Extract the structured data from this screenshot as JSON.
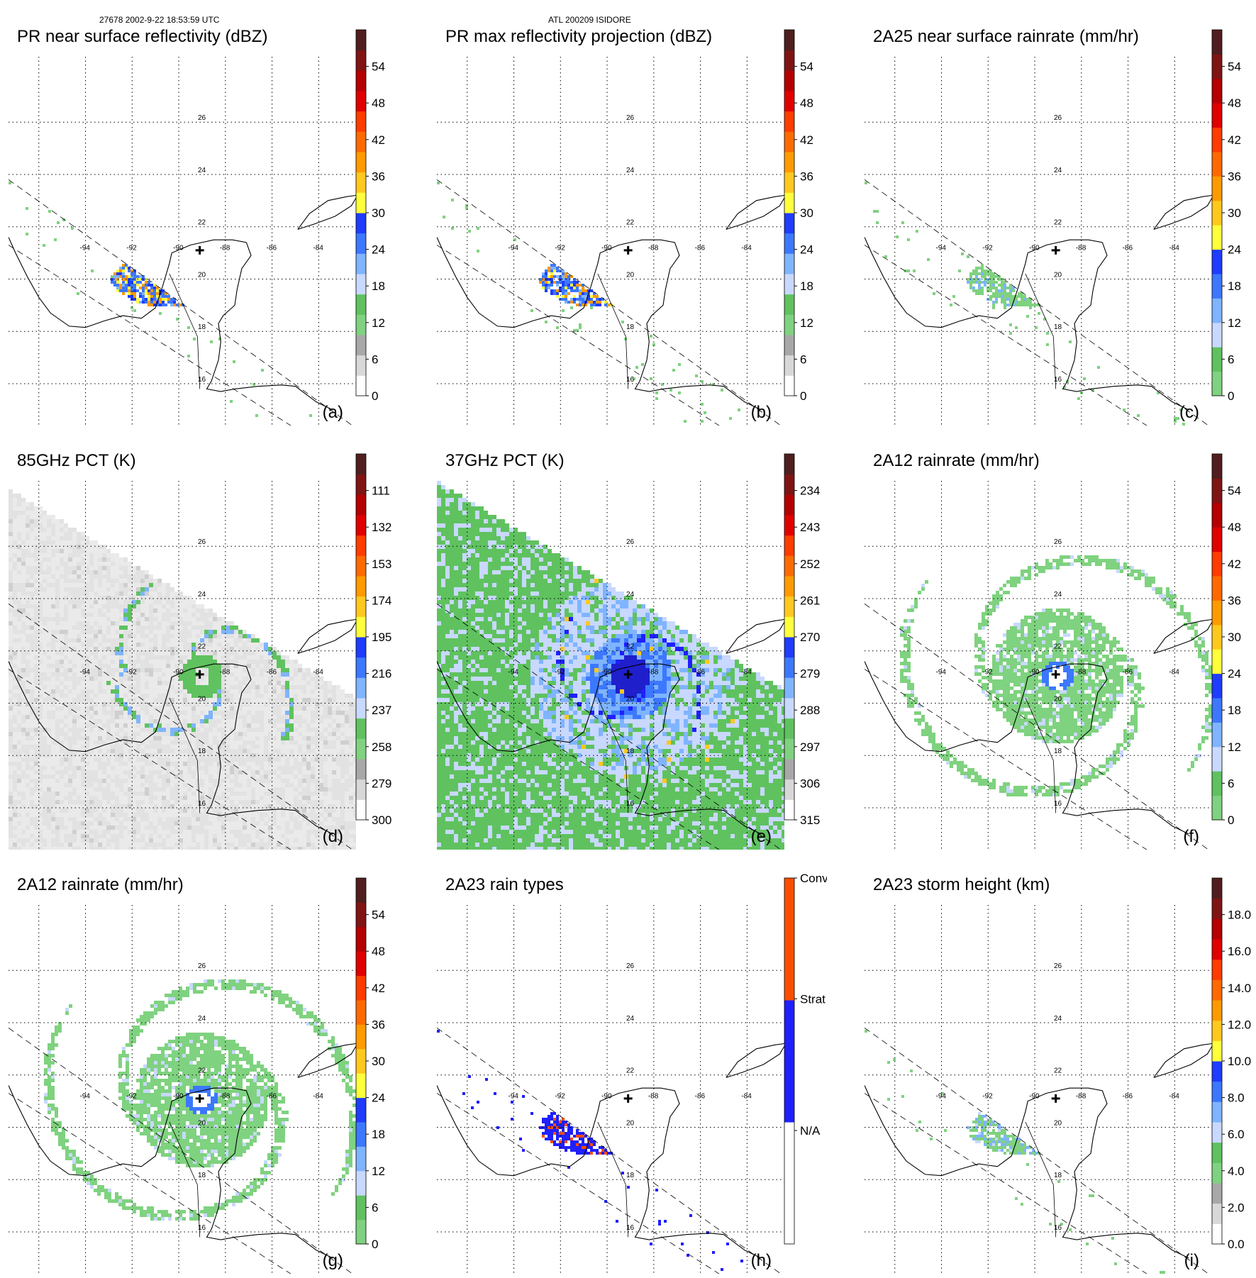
{
  "header": {
    "left": "27678 2002-9-22 18:53:59 UTC",
    "center": "ATL 200209 ISIDORE"
  },
  "map": {
    "lon_ticks": [
      "-94",
      "-92",
      "-90",
      "-88",
      "-86",
      "-84"
    ],
    "lat_ticks": [
      "16",
      "18",
      "20",
      "22",
      "24",
      "26"
    ],
    "storm_marker": "storm-center-cross"
  },
  "chart_data": [
    {
      "type": "heatmap",
      "id": "a",
      "label": "(a)",
      "title": "PR near surface reflectivity (dBZ)",
      "colorbar": {
        "range": [
          0,
          60
        ],
        "ticks": [
          "0",
          "6",
          "12",
          "18",
          "24",
          "30",
          "36",
          "42",
          "48",
          "54"
        ],
        "colors": [
          "#ffffff",
          "#d8d8d8",
          "#a8a8a8",
          "#7fd27f",
          "#5fc25f",
          "#c8d8ff",
          "#7fb4ff",
          "#3c78ff",
          "#1f3cff",
          "#ffff3c",
          "#ffc81e",
          "#ff9a00",
          "#ff6a00",
          "#ff3c00",
          "#e00000",
          "#b40000",
          "#801414",
          "#501e1e"
        ]
      },
      "field": "swath_reflectivity"
    },
    {
      "type": "heatmap",
      "id": "b",
      "label": "(b)",
      "title": "PR max reflectivity projection (dBZ)",
      "colorbar": {
        "range": [
          0,
          60
        ],
        "ticks": [
          "0",
          "6",
          "12",
          "18",
          "24",
          "30",
          "36",
          "42",
          "48",
          "54"
        ],
        "colors": [
          "#ffffff",
          "#d8d8d8",
          "#a8a8a8",
          "#7fd27f",
          "#5fc25f",
          "#c8d8ff",
          "#7fb4ff",
          "#3c78ff",
          "#1f3cff",
          "#ffff3c",
          "#ffc81e",
          "#ff9a00",
          "#ff6a00",
          "#ff3c00",
          "#e00000",
          "#b40000",
          "#801414",
          "#501e1e"
        ]
      },
      "field": "swath_max_reflectivity"
    },
    {
      "type": "heatmap",
      "id": "c",
      "label": "(c)",
      "title": "2A25 near surface rainrate (mm/hr)",
      "colorbar": {
        "range": [
          0,
          60
        ],
        "ticks": [
          "0",
          "6",
          "12",
          "18",
          "24",
          "30",
          "36",
          "42",
          "48",
          "54"
        ],
        "colors": [
          "#7fd27f",
          "#5fc25f",
          "#c8d8ff",
          "#7fb4ff",
          "#3c78ff",
          "#1f3cff",
          "#ffff3c",
          "#ffc81e",
          "#ff9a00",
          "#ff6a00",
          "#ff3c00",
          "#e00000",
          "#b40000",
          "#801414",
          "#501e1e"
        ]
      },
      "field": "swath_rainrate"
    },
    {
      "type": "heatmap",
      "id": "d",
      "label": "(d)",
      "title": "85GHz PCT (K)",
      "colorbar": {
        "range": [
          300,
          90
        ],
        "ticks": [
          "300",
          "279",
          "258",
          "237",
          "216",
          "195",
          "174",
          "153",
          "132",
          "111"
        ],
        "colors": [
          "#ffffff",
          "#d8d8d8",
          "#a8a8a8",
          "#7fd27f",
          "#5fc25f",
          "#c8d8ff",
          "#7fb4ff",
          "#3c78ff",
          "#1f3cff",
          "#ffff3c",
          "#ffc81e",
          "#ff9a00",
          "#ff6a00",
          "#ff3c00",
          "#e00000",
          "#b40000",
          "#801414",
          "#501e1e"
        ]
      },
      "field": "tmi_85pct"
    },
    {
      "type": "heatmap",
      "id": "e",
      "label": "(e)",
      "title": "37GHz PCT (K)",
      "colorbar": {
        "range": [
          315,
          225
        ],
        "ticks": [
          "315",
          "306",
          "297",
          "288",
          "279",
          "270",
          "261",
          "252",
          "243",
          "234"
        ],
        "colors": [
          "#ffffff",
          "#d8d8d8",
          "#a8a8a8",
          "#7fd27f",
          "#5fc25f",
          "#c8d8ff",
          "#7fb4ff",
          "#3c78ff",
          "#1f3cff",
          "#ffff3c",
          "#ffc81e",
          "#ff9a00",
          "#ff6a00",
          "#ff3c00",
          "#e00000",
          "#b40000",
          "#801414",
          "#501e1e"
        ]
      },
      "field": "tmi_37pct"
    },
    {
      "type": "heatmap",
      "id": "f",
      "label": "(f)",
      "title": "2A12 rainrate (mm/hr)",
      "colorbar": {
        "range": [
          0,
          60
        ],
        "ticks": [
          "0",
          "6",
          "12",
          "18",
          "24",
          "30",
          "36",
          "42",
          "48",
          "54"
        ],
        "colors": [
          "#7fd27f",
          "#5fc25f",
          "#c8d8ff",
          "#7fb4ff",
          "#3c78ff",
          "#1f3cff",
          "#ffff3c",
          "#ffc81e",
          "#ff9a00",
          "#ff6a00",
          "#ff3c00",
          "#e00000",
          "#b40000",
          "#801414",
          "#501e1e"
        ]
      },
      "field": "tmi_rainrate"
    },
    {
      "type": "heatmap",
      "id": "g",
      "label": "(g)",
      "title": "2A12 rainrate (mm/hr)",
      "colorbar": {
        "range": [
          0,
          60
        ],
        "ticks": [
          "0",
          "6",
          "12",
          "18",
          "24",
          "30",
          "36",
          "42",
          "48",
          "54"
        ],
        "colors": [
          "#7fd27f",
          "#5fc25f",
          "#c8d8ff",
          "#7fb4ff",
          "#3c78ff",
          "#1f3cff",
          "#ffff3c",
          "#ffc81e",
          "#ff9a00",
          "#ff6a00",
          "#ff3c00",
          "#e00000",
          "#b40000",
          "#801414",
          "#501e1e"
        ]
      },
      "field": "tmi_rainrate"
    },
    {
      "type": "heatmap",
      "id": "h",
      "label": "(h)",
      "title": "2A23 rain types",
      "colorbar": {
        "categorical": true,
        "ticks": [
          "N/A",
          "Strat",
          "Conv"
        ],
        "colors": [
          "#ffffff",
          "#1f1fff",
          "#ff4d00"
        ]
      },
      "field": "swath_raintype"
    },
    {
      "type": "heatmap",
      "id": "i",
      "label": "(i)",
      "title": "2A23 storm height (km)",
      "colorbar": {
        "range": [
          0,
          20
        ],
        "ticks": [
          "0.0",
          "2.0",
          "4.0",
          "6.0",
          "8.0",
          "10.0",
          "12.0",
          "14.0",
          "16.0",
          "18.0"
        ],
        "colors": [
          "#ffffff",
          "#d8d8d8",
          "#a8a8a8",
          "#7fd27f",
          "#5fc25f",
          "#c8d8ff",
          "#7fb4ff",
          "#3c78ff",
          "#1f3cff",
          "#ffff3c",
          "#ffc81e",
          "#ff9a00",
          "#ff6a00",
          "#ff3c00",
          "#e00000",
          "#b40000",
          "#801414",
          "#501e1e"
        ]
      },
      "field": "swath_stormheight"
    }
  ]
}
